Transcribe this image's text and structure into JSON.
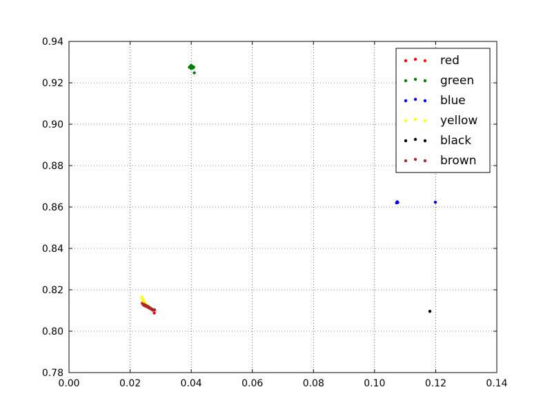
{
  "chart_data": {
    "type": "scatter",
    "title": "",
    "xlabel": "",
    "ylabel": "",
    "xlim": [
      0.0,
      0.14
    ],
    "ylim": [
      0.78,
      0.94
    ],
    "x_ticks": [
      "0.00",
      "0.02",
      "0.04",
      "0.06",
      "0.08",
      "0.10",
      "0.12",
      "0.14"
    ],
    "y_ticks": [
      "0.78",
      "0.80",
      "0.82",
      "0.84",
      "0.86",
      "0.88",
      "0.90",
      "0.92",
      "0.94"
    ],
    "grid": true,
    "legend_position": "top-right",
    "series": [
      {
        "name": "red",
        "color": "#ff0000",
        "points": [
          [
            0.024,
            0.8135
          ],
          [
            0.0243,
            0.8128
          ],
          [
            0.0247,
            0.8124
          ],
          [
            0.0252,
            0.812
          ],
          [
            0.0256,
            0.8118
          ],
          [
            0.026,
            0.8114
          ],
          [
            0.0265,
            0.811
          ],
          [
            0.027,
            0.8106
          ],
          [
            0.0274,
            0.8102
          ],
          [
            0.0279,
            0.8088
          ]
        ]
      },
      {
        "name": "green",
        "color": "#008000",
        "points": [
          [
            0.0394,
            0.9275
          ],
          [
            0.0398,
            0.928
          ],
          [
            0.04,
            0.9284
          ],
          [
            0.0403,
            0.9279
          ],
          [
            0.0406,
            0.9272
          ],
          [
            0.0408,
            0.9276
          ],
          [
            0.04,
            0.9269
          ],
          [
            0.041,
            0.9248
          ]
        ]
      },
      {
        "name": "blue",
        "color": "#0000ff",
        "points": [
          [
            0.1072,
            0.862
          ],
          [
            0.1074,
            0.8625
          ],
          [
            0.1076,
            0.8622
          ],
          [
            0.1199,
            0.8623
          ]
        ]
      },
      {
        "name": "yellow",
        "color": "#ffff00",
        "points": [
          [
            0.0238,
            0.8165
          ],
          [
            0.024,
            0.8158
          ],
          [
            0.0243,
            0.815
          ],
          [
            0.0245,
            0.8143
          ],
          [
            0.0248,
            0.8136
          ],
          [
            0.0252,
            0.8128
          ],
          [
            0.0256,
            0.8122
          ]
        ]
      },
      {
        "name": "black",
        "color": "#000000",
        "points": [
          [
            0.1181,
            0.8096
          ]
        ]
      },
      {
        "name": "brown",
        "color": "#a52a2a",
        "points": [
          [
            0.0245,
            0.813
          ],
          [
            0.025,
            0.8126
          ],
          [
            0.0254,
            0.8122
          ],
          [
            0.0258,
            0.812
          ],
          [
            0.0262,
            0.8116
          ],
          [
            0.0266,
            0.8112
          ],
          [
            0.027,
            0.8108
          ],
          [
            0.0275,
            0.8104
          ],
          [
            0.028,
            0.8103
          ]
        ]
      }
    ]
  }
}
